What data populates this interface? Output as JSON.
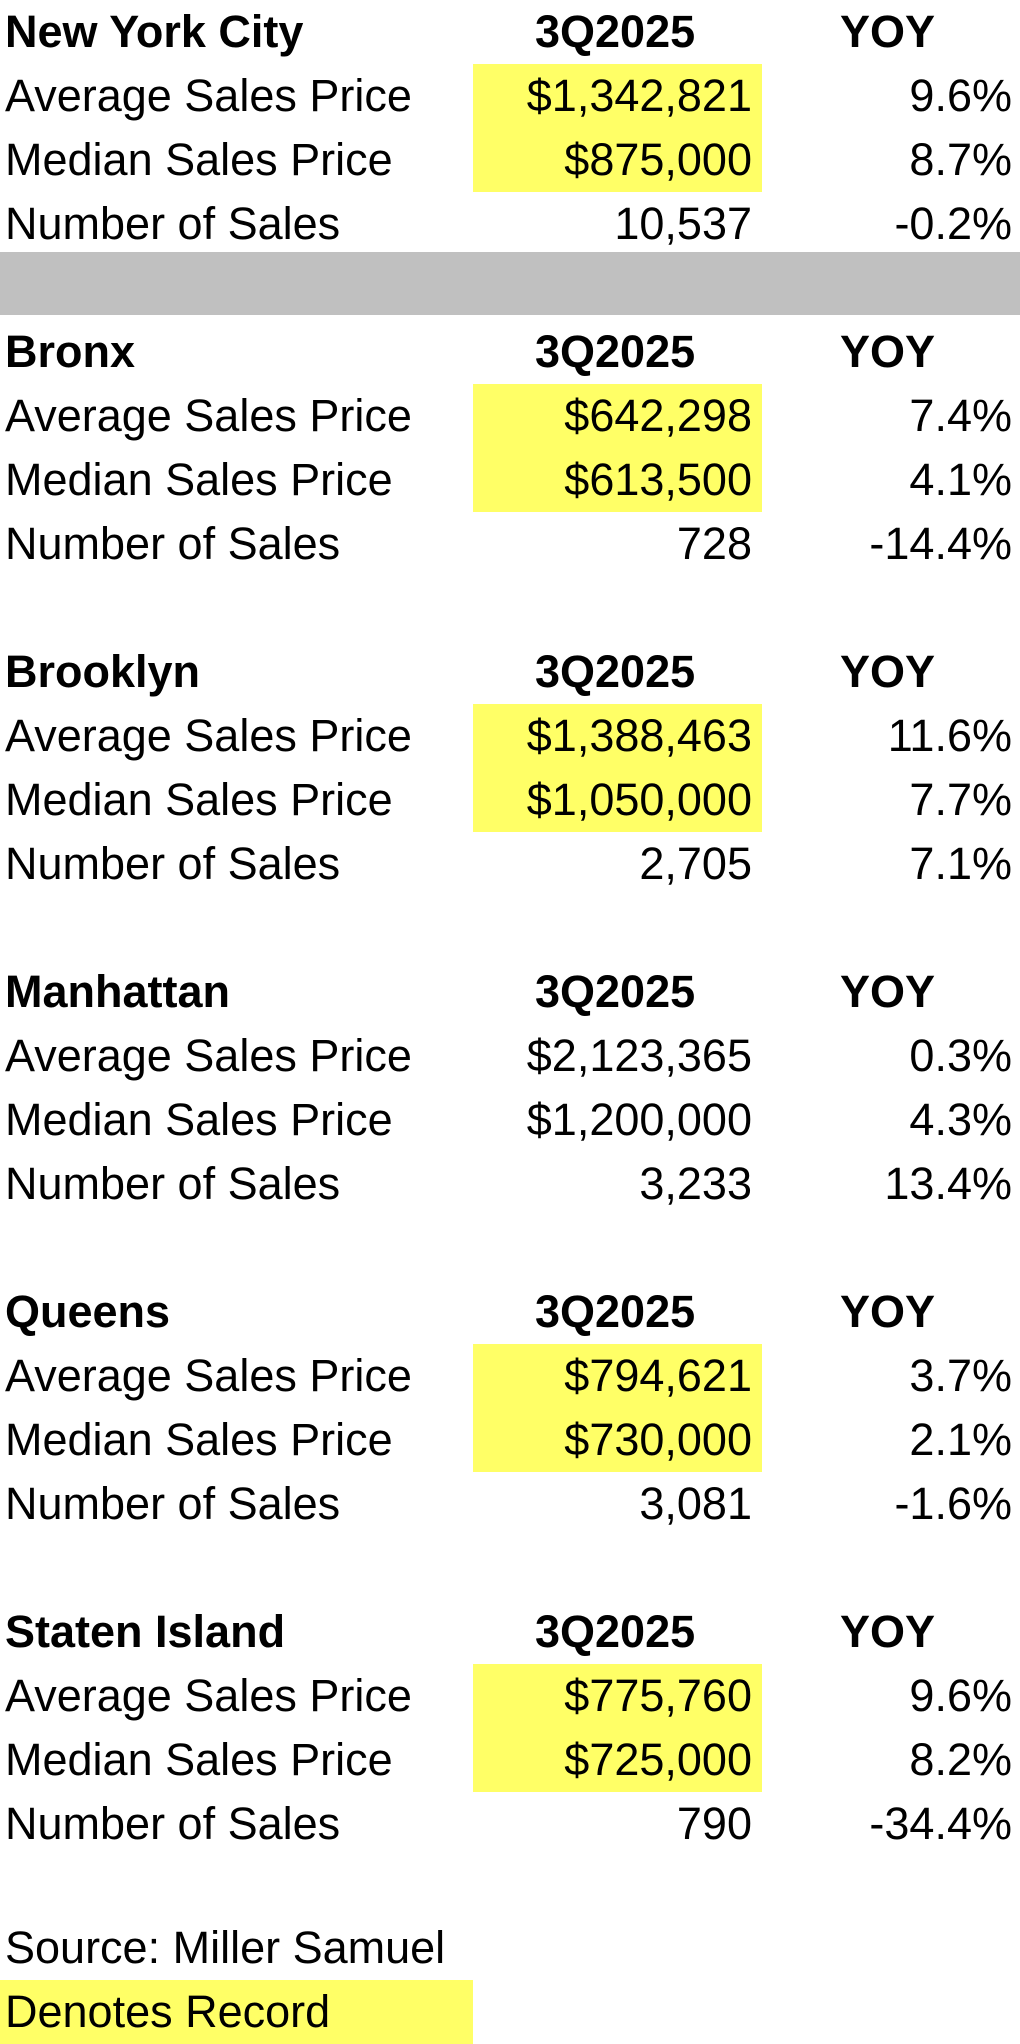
{
  "colors": {
    "record_highlight": "#ffff66",
    "divider": "#c0c0c0"
  },
  "sections": [
    {
      "name": "New York City",
      "period": "3Q2025",
      "change_label": "YOY",
      "rows": [
        {
          "label": "Average Sales Price",
          "value": "$1,342,821",
          "yoy": "9.6%",
          "record": true
        },
        {
          "label": "Median Sales Price",
          "value": "$875,000",
          "yoy": "8.7%",
          "record": true
        },
        {
          "label": "Number of Sales",
          "value": "10,537",
          "yoy": "-0.2%",
          "record": false
        }
      ]
    },
    {
      "name": "Bronx",
      "period": "3Q2025",
      "change_label": "YOY",
      "rows": [
        {
          "label": "Average Sales Price",
          "value": "$642,298",
          "yoy": "7.4%",
          "record": true
        },
        {
          "label": "Median Sales Price",
          "value": "$613,500",
          "yoy": "4.1%",
          "record": true
        },
        {
          "label": "Number of Sales",
          "value": "728",
          "yoy": "-14.4%",
          "record": false
        }
      ]
    },
    {
      "name": "Brooklyn",
      "period": "3Q2025",
      "change_label": "YOY",
      "rows": [
        {
          "label": "Average Sales Price",
          "value": "$1,388,463",
          "yoy": "11.6%",
          "record": true
        },
        {
          "label": "Median Sales Price",
          "value": "$1,050,000",
          "yoy": "7.7%",
          "record": true
        },
        {
          "label": "Number of Sales",
          "value": "2,705",
          "yoy": "7.1%",
          "record": false
        }
      ]
    },
    {
      "name": "Manhattan",
      "period": "3Q2025",
      "change_label": "YOY",
      "rows": [
        {
          "label": "Average Sales Price",
          "value": "$2,123,365",
          "yoy": "0.3%",
          "record": false
        },
        {
          "label": "Median Sales Price",
          "value": "$1,200,000",
          "yoy": "4.3%",
          "record": false
        },
        {
          "label": "Number of Sales",
          "value": "3,233",
          "yoy": "13.4%",
          "record": false
        }
      ]
    },
    {
      "name": "Queens",
      "period": "3Q2025",
      "change_label": "YOY",
      "rows": [
        {
          "label": "Average Sales Price",
          "value": "$794,621",
          "yoy": "3.7%",
          "record": true
        },
        {
          "label": "Median Sales Price",
          "value": "$730,000",
          "yoy": "2.1%",
          "record": true
        },
        {
          "label": "Number of Sales",
          "value": "3,081",
          "yoy": "-1.6%",
          "record": false
        }
      ]
    },
    {
      "name": "Staten Island",
      "period": "3Q2025",
      "change_label": "YOY",
      "rows": [
        {
          "label": "Average Sales Price",
          "value": "$775,760",
          "yoy": "9.6%",
          "record": true
        },
        {
          "label": "Median Sales Price",
          "value": "$725,000",
          "yoy": "8.2%",
          "record": true
        },
        {
          "label": "Number of Sales",
          "value": "790",
          "yoy": "-34.4%",
          "record": false
        }
      ]
    }
  ],
  "footer": {
    "source": "Source: Miller Samuel",
    "legend": "Denotes Record"
  }
}
